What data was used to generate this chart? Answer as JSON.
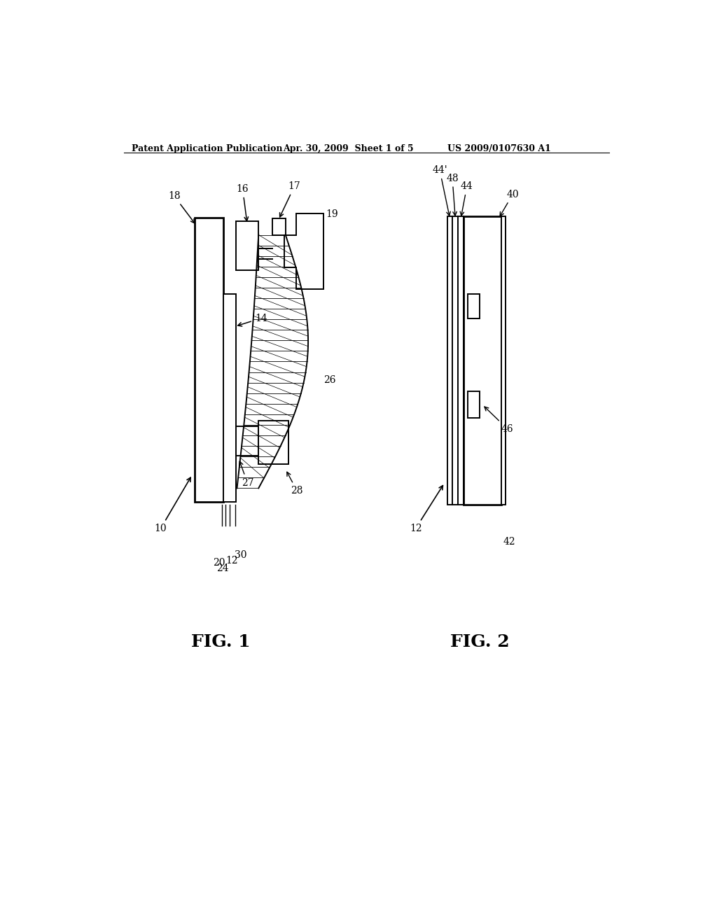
{
  "bg_color": "#ffffff",
  "header_left": "Patent Application Publication",
  "header_mid": "Apr. 30, 2009  Sheet 1 of 5",
  "header_right": "US 2009/0107630 A1",
  "fig1_label": "FIG. 1",
  "fig2_label": "FIG. 2"
}
